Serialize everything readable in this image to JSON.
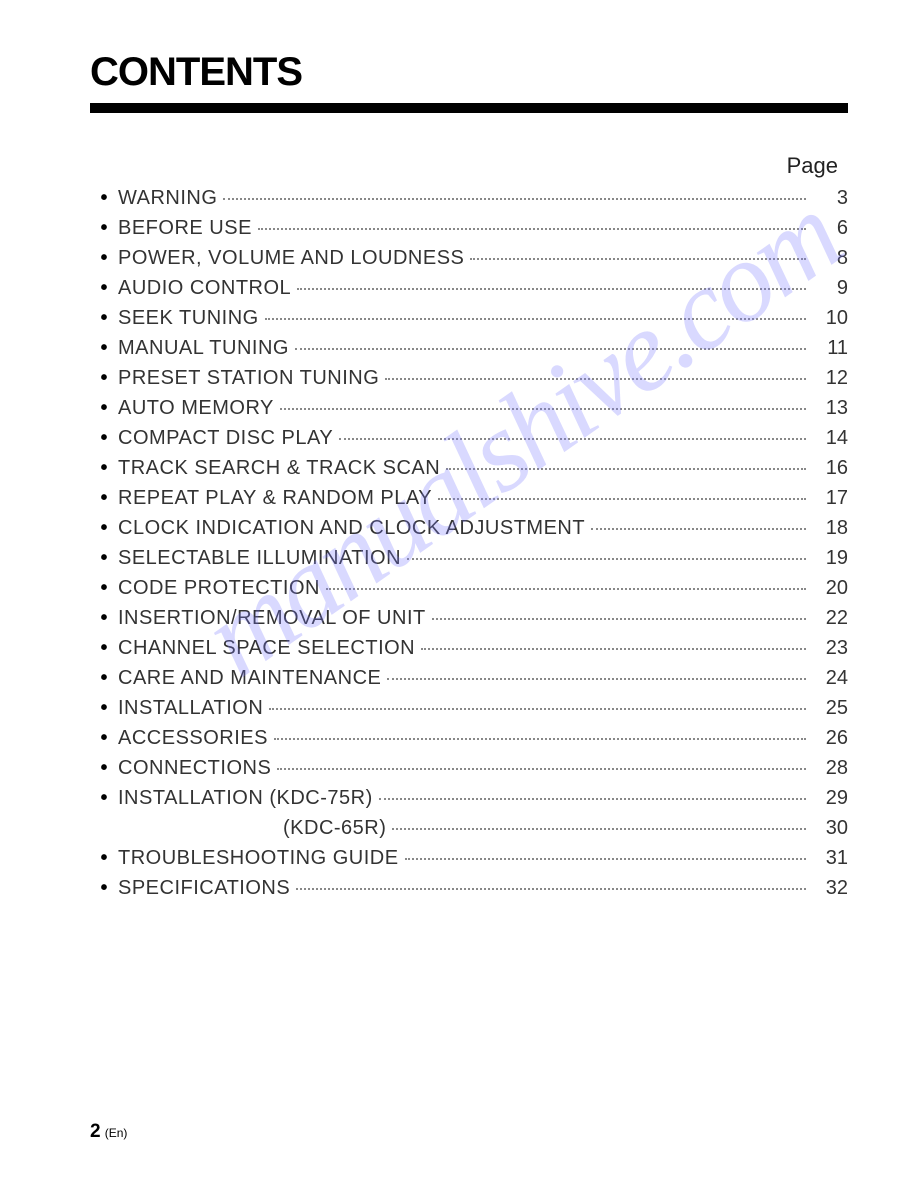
{
  "heading": "CONTENTS",
  "page_label": "Page",
  "watermark": "manualshive.com",
  "footer": {
    "page_number": "2",
    "lang": "(En)"
  },
  "entries": [
    {
      "label": "WARNING",
      "page": "3",
      "bullet": true,
      "indent": false
    },
    {
      "label": "BEFORE USE",
      "page": "6",
      "bullet": true,
      "indent": false
    },
    {
      "label": "POWER, VOLUME AND LOUDNESS",
      "page": "8",
      "bullet": true,
      "indent": false
    },
    {
      "label": "AUDIO CONTROL",
      "page": "9",
      "bullet": true,
      "indent": false
    },
    {
      "label": "SEEK TUNING",
      "page": "10",
      "bullet": true,
      "indent": false
    },
    {
      "label": "MANUAL TUNING",
      "page": "11",
      "bullet": true,
      "indent": false
    },
    {
      "label": "PRESET STATION TUNING",
      "page": "12",
      "bullet": true,
      "indent": false
    },
    {
      "label": "AUTO MEMORY",
      "page": "13",
      "bullet": true,
      "indent": false
    },
    {
      "label": "COMPACT DISC PLAY",
      "page": "14",
      "bullet": true,
      "indent": false
    },
    {
      "label": "TRACK SEARCH & TRACK SCAN",
      "page": "16",
      "bullet": true,
      "indent": false
    },
    {
      "label": "REPEAT PLAY & RANDOM PLAY",
      "page": "17",
      "bullet": true,
      "indent": false
    },
    {
      "label": "CLOCK INDICATION AND CLOCK ADJUSTMENT",
      "page": "18",
      "bullet": true,
      "indent": false
    },
    {
      "label": "SELECTABLE ILLUMINATION",
      "page": "19",
      "bullet": true,
      "indent": false
    },
    {
      "label": "CODE PROTECTION",
      "page": "20",
      "bullet": true,
      "indent": false
    },
    {
      "label": "INSERTION/REMOVAL OF UNIT",
      "page": "22",
      "bullet": true,
      "indent": false
    },
    {
      "label": "CHANNEL SPACE SELECTION",
      "page": "23",
      "bullet": true,
      "indent": false
    },
    {
      "label": "CARE AND MAINTENANCE",
      "page": "24",
      "bullet": true,
      "indent": false
    },
    {
      "label": "INSTALLATION",
      "page": "25",
      "bullet": true,
      "indent": false
    },
    {
      "label": "ACCESSORIES",
      "page": "26",
      "bullet": true,
      "indent": false
    },
    {
      "label": "CONNECTIONS",
      "page": "28",
      "bullet": true,
      "indent": false
    },
    {
      "label": "INSTALLATION (KDC-75R)",
      "page": "29",
      "bullet": true,
      "indent": false
    },
    {
      "label": "(KDC-65R)",
      "page": "30",
      "bullet": false,
      "indent": true
    },
    {
      "label": "TROUBLESHOOTING GUIDE",
      "page": "31",
      "bullet": true,
      "indent": false
    },
    {
      "label": "SPECIFICATIONS",
      "page": "32",
      "bullet": true,
      "indent": false
    }
  ],
  "colors": {
    "text": "#333333",
    "bar": "#000000",
    "watermark": "rgba(120,120,255,0.28)",
    "background": "#ffffff"
  },
  "typography": {
    "title_fontsize": 40,
    "body_fontsize": 20,
    "page_label_fontsize": 22
  }
}
